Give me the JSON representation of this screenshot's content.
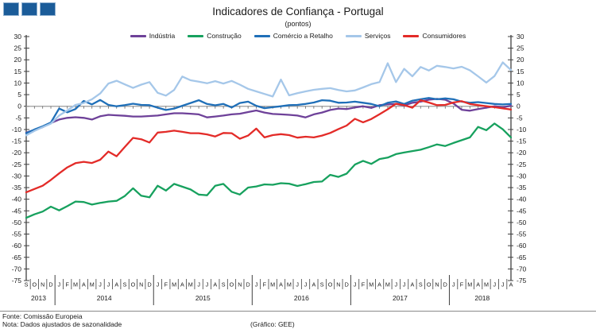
{
  "header": {
    "title": "Indicadores de Confiança - Portugal",
    "subtitle": "(pontos)"
  },
  "chart_data": {
    "type": "line",
    "title": "Indicadores de Confiança - Portugal",
    "subtitle": "(pontos)",
    "grid": "off",
    "legend_position": "top-center",
    "y_axis": {
      "min": -75,
      "max": 30,
      "step": 5,
      "sides": [
        "left",
        "right"
      ]
    },
    "x_months": [
      "S",
      "O",
      "N",
      "D",
      "J",
      "F",
      "M",
      "A",
      "M",
      "J",
      "J",
      "A",
      "S",
      "O",
      "N",
      "D",
      "J",
      "F",
      "M",
      "A",
      "M",
      "J",
      "J",
      "A",
      "S",
      "O",
      "N",
      "D",
      "J",
      "F",
      "M",
      "A",
      "M",
      "J",
      "J",
      "A",
      "S",
      "O",
      "N",
      "D",
      "J",
      "F",
      "M",
      "A",
      "M",
      "J",
      "J",
      "A",
      "S",
      "O",
      "N",
      "D",
      "J",
      "F",
      "M",
      "A",
      "M",
      "J",
      "J",
      "A"
    ],
    "x_years": [
      {
        "label": "2013",
        "start": 0,
        "end": 3
      },
      {
        "label": "2014",
        "start": 4,
        "end": 15
      },
      {
        "label": "2015",
        "start": 16,
        "end": 27
      },
      {
        "label": "2016",
        "start": 28,
        "end": 39
      },
      {
        "label": "2017",
        "start": 40,
        "end": 51
      },
      {
        "label": "2018",
        "start": 52,
        "end": 59
      }
    ],
    "series": [
      {
        "name": "Indústria",
        "color": "#6e4199",
        "values": [
          -11.3,
          -10.2,
          -9.0,
          -7.2,
          -5.7,
          -5.0,
          -4.7,
          -5.0,
          -5.7,
          -4.3,
          -3.7,
          -3.9,
          -4.1,
          -4.4,
          -4.4,
          -4.2,
          -4.0,
          -3.5,
          -3.0,
          -3.0,
          -3.2,
          -3.5,
          -4.8,
          -4.4,
          -4.0,
          -3.5,
          -3.2,
          -2.5,
          -1.8,
          -2.7,
          -3.3,
          -3.5,
          -3.7,
          -4.0,
          -4.8,
          -3.5,
          -2.7,
          -1.6,
          -1.0,
          -1.2,
          -0.5,
          0.0,
          -0.7,
          0.5,
          0.8,
          1.0,
          0.3,
          1.5,
          2.0,
          2.8,
          3.2,
          2.8,
          1.2,
          -1.5,
          -1.9,
          -1.2,
          -0.6,
          0.0,
          -0.4,
          0.2
        ]
      },
      {
        "name": "Construção",
        "color": "#17a15e",
        "values": [
          -48.0,
          -46.5,
          -45.3,
          -43.2,
          -44.8,
          -43.0,
          -41.0,
          -41.2,
          -42.3,
          -41.6,
          -41.0,
          -40.7,
          -38.6,
          -35.3,
          -38.5,
          -39.2,
          -34.2,
          -36.3,
          -33.4,
          -34.6,
          -35.8,
          -38.0,
          -38.3,
          -34.2,
          -33.4,
          -36.8,
          -38.0,
          -35.0,
          -34.5,
          -33.6,
          -33.8,
          -33.1,
          -33.3,
          -34.3,
          -33.5,
          -32.6,
          -32.4,
          -29.5,
          -30.4,
          -29.0,
          -25.1,
          -23.5,
          -24.8,
          -22.7,
          -22.1,
          -20.6,
          -19.9,
          -19.3,
          -18.7,
          -17.6,
          -16.4,
          -17.1,
          -15.8,
          -14.6,
          -13.4,
          -8.9,
          -10.3,
          -7.4,
          -9.9,
          -13.4
        ]
      },
      {
        "name": "Comércio a Retalho",
        "color": "#1f6fb8",
        "values": [
          -11.6,
          -10.0,
          -8.6,
          -7.0,
          -1.0,
          -2.6,
          -1.2,
          2.3,
          0.8,
          2.7,
          0.6,
          0.0,
          0.5,
          1.1,
          0.6,
          0.5,
          -0.6,
          -1.6,
          -1.0,
          0.2,
          1.4,
          2.6,
          1.0,
          0.4,
          1.0,
          -0.5,
          1.4,
          2.0,
          0.2,
          -0.8,
          -0.4,
          0.0,
          0.5,
          0.6,
          1.0,
          1.6,
          2.6,
          2.4,
          1.5,
          1.6,
          2.0,
          1.5,
          1.0,
          0.0,
          1.5,
          2.1,
          1.0,
          2.4,
          3.0,
          3.6,
          3.0,
          3.4,
          3.0,
          2.0,
          1.5,
          1.8,
          1.4,
          1.0,
          0.8,
          1.0
        ]
      },
      {
        "name": "Serviços",
        "color": "#a5c7e9",
        "values": [
          -12.5,
          -10.6,
          -9.0,
          -7.5,
          -4.0,
          -1.8,
          0.6,
          1.4,
          3.0,
          5.5,
          9.8,
          11.0,
          9.4,
          7.9,
          9.3,
          10.4,
          5.8,
          4.6,
          7.0,
          12.8,
          11.2,
          10.6,
          9.9,
          10.8,
          9.8,
          10.9,
          9.3,
          7.5,
          6.4,
          5.3,
          4.2,
          11.5,
          4.7,
          5.6,
          6.4,
          7.1,
          7.5,
          7.8,
          7.0,
          6.4,
          6.8,
          8.1,
          9.5,
          10.4,
          18.5,
          10.4,
          16.1,
          12.9,
          16.9,
          15.4,
          17.4,
          16.9,
          16.3,
          17.0,
          15.5,
          12.9,
          10.2,
          13.0,
          18.9,
          15.6
        ]
      },
      {
        "name": "Consumidores",
        "color": "#e32b28",
        "values": [
          -37.0,
          -35.6,
          -34.2,
          -31.7,
          -28.9,
          -26.3,
          -24.5,
          -23.9,
          -24.4,
          -23.0,
          -19.5,
          -21.5,
          -17.5,
          -13.6,
          -14.2,
          -15.6,
          -11.3,
          -11.0,
          -10.5,
          -11.0,
          -11.6,
          -11.6,
          -12.1,
          -13.0,
          -11.5,
          -11.6,
          -14.0,
          -12.6,
          -9.6,
          -13.4,
          -12.4,
          -12.0,
          -12.4,
          -13.5,
          -13.1,
          -13.4,
          -12.6,
          -11.5,
          -9.8,
          -8.3,
          -5.4,
          -6.9,
          -5.5,
          -3.4,
          -1.3,
          1.1,
          0.5,
          -0.6,
          2.6,
          1.6,
          0.5,
          0.6,
          1.6,
          2.2,
          1.0,
          0.5,
          0.0,
          -0.4,
          -0.9,
          -1.4
        ]
      }
    ]
  },
  "footer": {
    "source": "Fonte: Comissão Europeia",
    "note": "Nota: Dados ajustados de sazonalidade",
    "credit": "(Gráfico: GEE)"
  }
}
